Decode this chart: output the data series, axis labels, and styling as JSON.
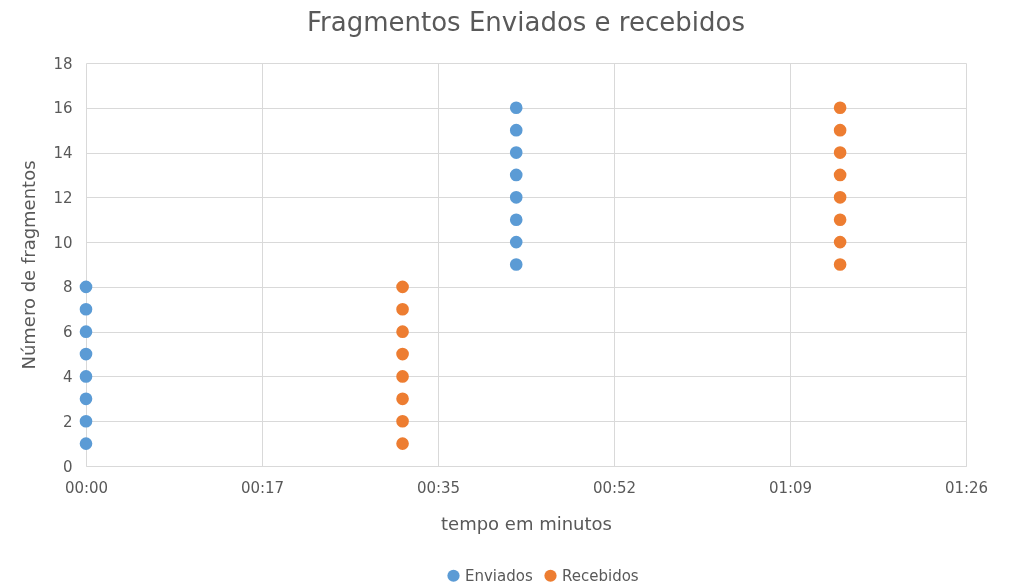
{
  "chart_data": {
    "type": "scatter",
    "title": "Fragmentos Enviados e recebidos",
    "xlabel": "tempo em minutos",
    "ylabel": "Número de fragmentos",
    "series": [
      {
        "name": "Enviados",
        "color": "#5b9bd5",
        "x": [
          0,
          0,
          0,
          0,
          0,
          0,
          0,
          0,
          0.704,
          0.704,
          0.704,
          0.704,
          0.704,
          0.704,
          0.704,
          0.704
        ],
        "values": [
          1,
          2,
          3,
          4,
          5,
          6,
          7,
          8,
          9,
          10,
          11,
          12,
          13,
          14,
          15,
          16
        ]
      },
      {
        "name": "Recebidos",
        "color": "#ed7d31",
        "x": [
          0.518,
          0.518,
          0.518,
          0.518,
          0.518,
          0.518,
          0.518,
          0.518,
          1.234,
          1.234,
          1.234,
          1.234,
          1.234,
          1.234,
          1.234,
          1.234
        ],
        "values": [
          1,
          2,
          3,
          4,
          5,
          6,
          7,
          8,
          9,
          10,
          11,
          12,
          13,
          14,
          15,
          16
        ]
      }
    ],
    "xlim": [
      0,
      1.44
    ],
    "xticks": [
      {
        "value": 0,
        "label": "00:00"
      },
      {
        "value": 0.288,
        "label": "00:17"
      },
      {
        "value": 0.576,
        "label": "00:35"
      },
      {
        "value": 0.864,
        "label": "00:52"
      },
      {
        "value": 1.152,
        "label": "01:09"
      },
      {
        "value": 1.44,
        "label": "01:26"
      }
    ],
    "ylim": [
      0,
      18
    ],
    "yticks": [
      0,
      2,
      4,
      6,
      8,
      10,
      12,
      14,
      16,
      18
    ],
    "grid": true,
    "legend": "bottom",
    "marker": "circle"
  }
}
